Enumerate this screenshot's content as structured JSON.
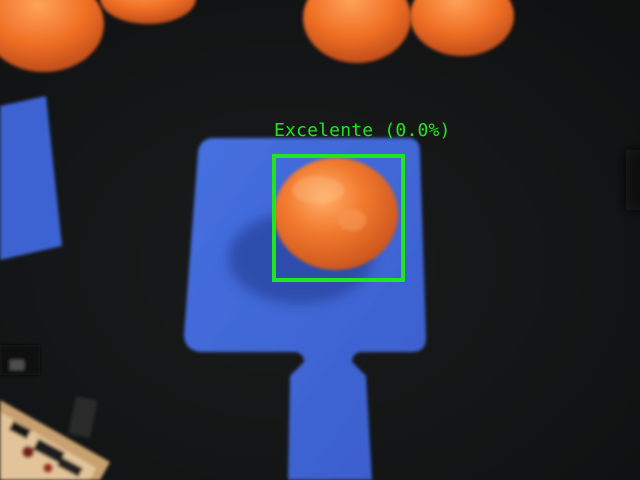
{
  "detection": {
    "label": "Excelente (0.0%)",
    "box_color": "#22e51f"
  },
  "scene": {
    "paddle_color": "#3d63d4",
    "fruit_color": "#f0782c",
    "background_color": "#161718"
  }
}
